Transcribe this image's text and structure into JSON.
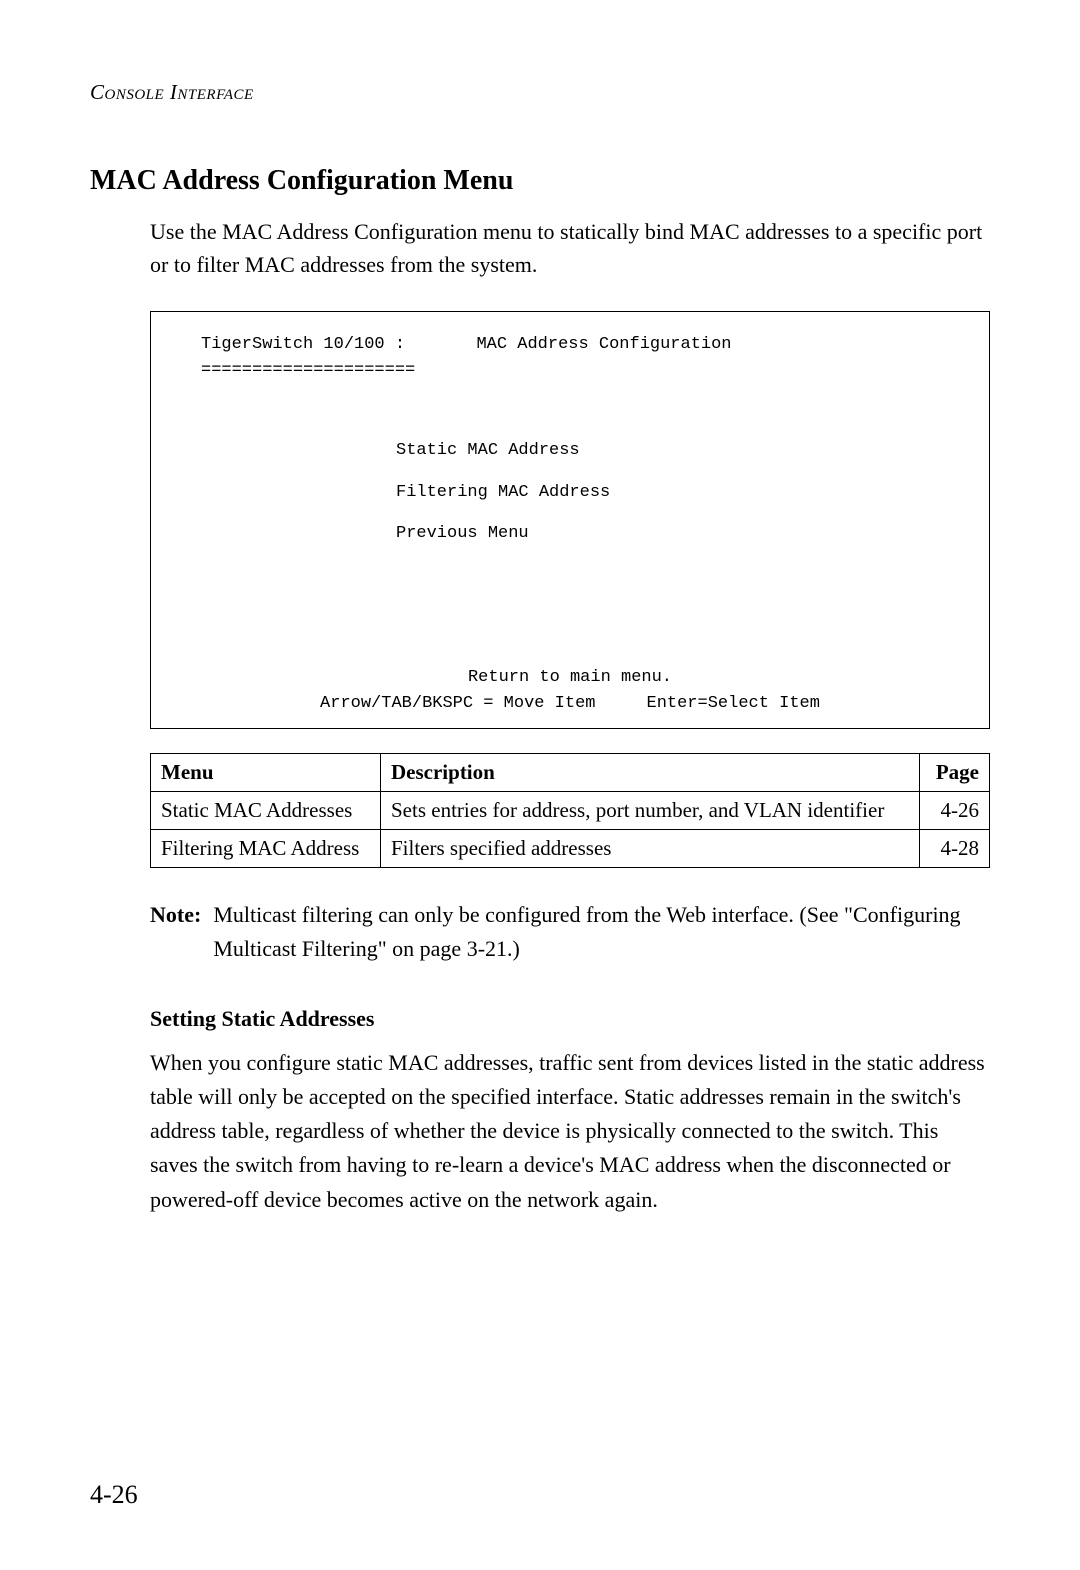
{
  "header": {
    "running": "Console Interface"
  },
  "section": {
    "heading": "MAC Address Configuration Menu",
    "intro": "Use the MAC Address Configuration menu to statically bind MAC addresses to a specific port or to filter MAC addresses from the system."
  },
  "console": {
    "title_left": "TigerSwitch 10/100 :",
    "title_right": "MAC Address Configuration",
    "divider": "=====================",
    "menu_items": [
      "Static MAC Address",
      "Filtering MAC Address",
      "Previous Menu"
    ],
    "footer_line1": "Return to main menu.",
    "footer_line2": "Arrow/TAB/BKSPC = Move Item     Enter=Select Item"
  },
  "table": {
    "headers": {
      "menu": "Menu",
      "description": "Description",
      "page": "Page"
    },
    "rows": [
      {
        "menu": "Static MAC Addresses",
        "description": "Sets entries for address, port number, and VLAN identifier",
        "page": "4-26"
      },
      {
        "menu": "Filtering MAC Address",
        "description": "Filters specified addresses",
        "page": "4-28"
      }
    ]
  },
  "note": {
    "label": "Note:",
    "text": "Multicast filtering can only be configured from the Web interface. (See \"Configuring Multicast Filtering\" on page 3-21.)"
  },
  "subsection": {
    "heading": "Setting Static Addresses",
    "body": "When you configure static MAC addresses, traffic sent from devices listed in the static address table will only be accepted on the specified interface. Static addresses remain in the switch's address table, regardless of whether the device is physically connected to the switch. This saves the switch from having to re-learn a device's MAC address when the disconnected or powered-off device becomes active on the network again."
  },
  "page_number": "4-26",
  "styling": {
    "page_bg": "#ffffff",
    "text_color": "#000000",
    "border_color": "#000000",
    "body_fontsize": 22,
    "heading_fontsize": 28,
    "console_fontsize": 17,
    "table_fontsize": 21,
    "page_number_fontsize": 26
  }
}
